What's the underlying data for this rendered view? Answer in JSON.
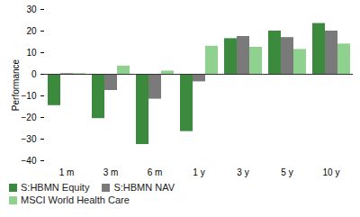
{
  "chart_data": {
    "type": "bar",
    "categories": [
      "1 m",
      "3 m",
      "6 m",
      "1 y",
      "3 y",
      "5 y",
      "10 y"
    ],
    "series": [
      {
        "name": "S:HBMN Equity",
        "color": "#3b8a3e",
        "values": [
          -14.5,
          -20.5,
          -32.5,
          -26.5,
          16.5,
          20,
          23.5
        ]
      },
      {
        "name": "S:HBMN NAV",
        "color": "#7a7a7a",
        "values": [
          0.3,
          -7.5,
          -11.5,
          -3.5,
          17.5,
          17,
          20
        ]
      },
      {
        "name": "MSCI World Health Care",
        "color": "#8fd28f",
        "values": [
          0.3,
          3.8,
          1.5,
          13,
          12.5,
          11.5,
          14
        ]
      }
    ],
    "y_label": "Performance",
    "ylim": [
      -40,
      30
    ],
    "yticks": [
      -40,
      -30,
      -20,
      -10,
      0,
      10,
      20,
      30
    ],
    "grid": false,
    "legend": "bottom"
  }
}
